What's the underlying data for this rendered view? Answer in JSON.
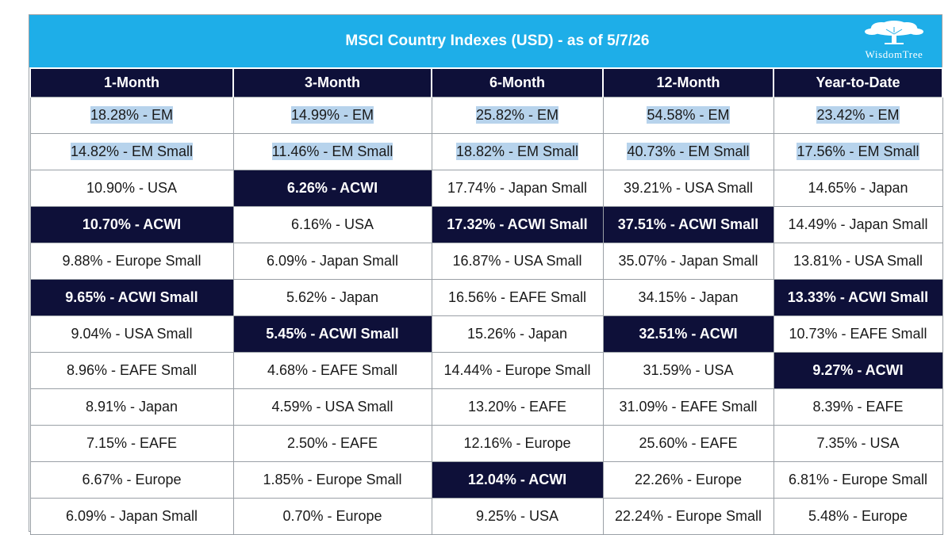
{
  "header": {
    "title": "MSCI Country Indexes (USD) - as of 5/7/26",
    "logo_text": "WisdomTree",
    "bg_color": "#1eaee8"
  },
  "table": {
    "columns": [
      "1-Month",
      "3-Month",
      "6-Month",
      "12-Month",
      "Year-to-Date"
    ],
    "highlight_color": "#0e1039",
    "selection_color": "#b7d3ec",
    "rows": [
      [
        {
          "text": "18.28% - EM",
          "dark": false,
          "selected": true
        },
        {
          "text": "14.99% - EM",
          "dark": false,
          "selected": true
        },
        {
          "text": "25.82% - EM",
          "dark": false,
          "selected": true
        },
        {
          "text": "54.58% - EM",
          "dark": false,
          "selected": true
        },
        {
          "text": "23.42% - EM",
          "dark": false,
          "selected": true
        }
      ],
      [
        {
          "text": "14.82% - EM Small",
          "dark": false,
          "selected": true
        },
        {
          "text": "11.46% - EM Small",
          "dark": false,
          "selected": true
        },
        {
          "text": "18.82% - EM Small",
          "dark": false,
          "selected": true
        },
        {
          "text": "40.73% - EM Small",
          "dark": false,
          "selected": true
        },
        {
          "text": "17.56% - EM Small",
          "dark": false,
          "selected": true
        }
      ],
      [
        {
          "text": "10.90% - USA",
          "dark": false,
          "selected": false
        },
        {
          "text": "6.26% - ACWI",
          "dark": true,
          "selected": false
        },
        {
          "text": "17.74% - Japan Small",
          "dark": false,
          "selected": false
        },
        {
          "text": "39.21% - USA Small",
          "dark": false,
          "selected": false
        },
        {
          "text": "14.65% - Japan",
          "dark": false,
          "selected": false
        }
      ],
      [
        {
          "text": "10.70% - ACWI",
          "dark": true,
          "selected": false
        },
        {
          "text": "6.16% - USA",
          "dark": false,
          "selected": false
        },
        {
          "text": "17.32% - ACWI Small",
          "dark": true,
          "selected": false
        },
        {
          "text": "37.51% - ACWI Small",
          "dark": true,
          "selected": false
        },
        {
          "text": "14.49% - Japan Small",
          "dark": false,
          "selected": false
        }
      ],
      [
        {
          "text": "9.88% - Europe Small",
          "dark": false,
          "selected": false
        },
        {
          "text": "6.09% - Japan Small",
          "dark": false,
          "selected": false
        },
        {
          "text": "16.87% - USA Small",
          "dark": false,
          "selected": false
        },
        {
          "text": "35.07% - Japan Small",
          "dark": false,
          "selected": false
        },
        {
          "text": "13.81% - USA Small",
          "dark": false,
          "selected": false
        }
      ],
      [
        {
          "text": "9.65% - ACWI Small",
          "dark": true,
          "selected": false
        },
        {
          "text": "5.62% - Japan",
          "dark": false,
          "selected": false
        },
        {
          "text": "16.56% - EAFE Small",
          "dark": false,
          "selected": false
        },
        {
          "text": "34.15% - Japan",
          "dark": false,
          "selected": false
        },
        {
          "text": "13.33% - ACWI Small",
          "dark": true,
          "selected": false
        }
      ],
      [
        {
          "text": "9.04% - USA Small",
          "dark": false,
          "selected": false
        },
        {
          "text": "5.45% - ACWI Small",
          "dark": true,
          "selected": false
        },
        {
          "text": "15.26% - Japan",
          "dark": false,
          "selected": false
        },
        {
          "text": "32.51% - ACWI",
          "dark": true,
          "selected": false
        },
        {
          "text": "10.73% - EAFE Small",
          "dark": false,
          "selected": false
        }
      ],
      [
        {
          "text": "8.96% - EAFE Small",
          "dark": false,
          "selected": false
        },
        {
          "text": "4.68% - EAFE Small",
          "dark": false,
          "selected": false
        },
        {
          "text": "14.44% - Europe Small",
          "dark": false,
          "selected": false
        },
        {
          "text": "31.59% - USA",
          "dark": false,
          "selected": false
        },
        {
          "text": "9.27% - ACWI",
          "dark": true,
          "selected": false
        }
      ],
      [
        {
          "text": "8.91% - Japan",
          "dark": false,
          "selected": false
        },
        {
          "text": "4.59% - USA Small",
          "dark": false,
          "selected": false
        },
        {
          "text": "13.20% - EAFE",
          "dark": false,
          "selected": false
        },
        {
          "text": "31.09% - EAFE Small",
          "dark": false,
          "selected": false
        },
        {
          "text": "8.39% - EAFE",
          "dark": false,
          "selected": false
        }
      ],
      [
        {
          "text": "7.15% - EAFE",
          "dark": false,
          "selected": false
        },
        {
          "text": "2.50% - EAFE",
          "dark": false,
          "selected": false
        },
        {
          "text": "12.16% - Europe",
          "dark": false,
          "selected": false
        },
        {
          "text": "25.60% - EAFE",
          "dark": false,
          "selected": false
        },
        {
          "text": "7.35% - USA",
          "dark": false,
          "selected": false
        }
      ],
      [
        {
          "text": "6.67% - Europe",
          "dark": false,
          "selected": false
        },
        {
          "text": "1.85% - Europe Small",
          "dark": false,
          "selected": false
        },
        {
          "text": "12.04% - ACWI",
          "dark": true,
          "selected": false
        },
        {
          "text": "22.26% - Europe",
          "dark": false,
          "selected": false
        },
        {
          "text": "6.81% - Europe Small",
          "dark": false,
          "selected": false
        }
      ],
      [
        {
          "text": "6.09% - Japan Small",
          "dark": false,
          "selected": false
        },
        {
          "text": "0.70% - Europe",
          "dark": false,
          "selected": false
        },
        {
          "text": "9.25% - USA",
          "dark": false,
          "selected": false
        },
        {
          "text": "22.24% - Europe Small",
          "dark": false,
          "selected": false
        },
        {
          "text": "5.48% - Europe",
          "dark": false,
          "selected": false
        }
      ]
    ]
  }
}
